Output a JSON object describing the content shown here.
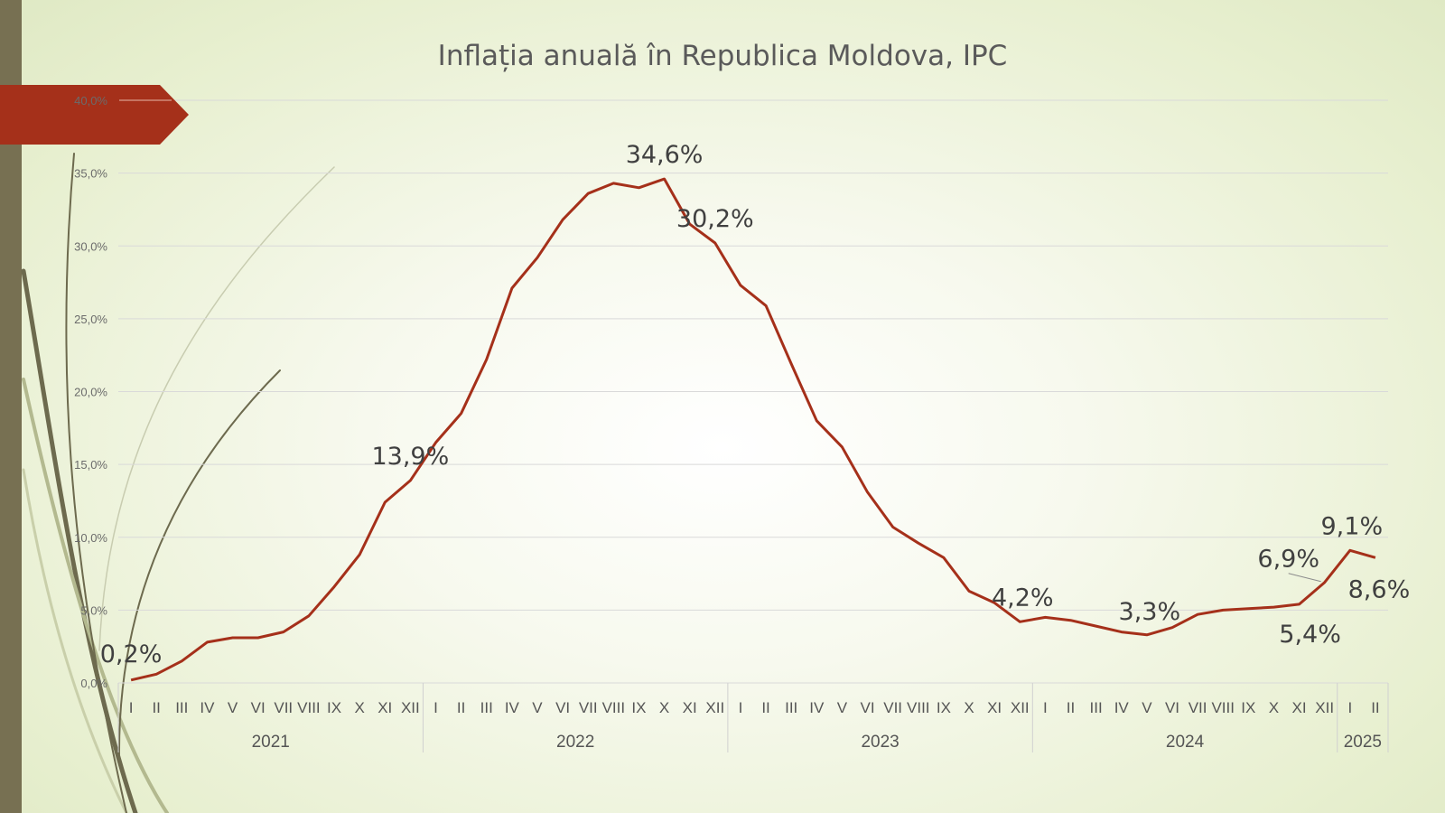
{
  "title": "Inflația anuală în Republica Moldova, IPC",
  "colors": {
    "line": "#a5301a",
    "arrow": "#a5301a",
    "sidebar": "#777052",
    "grid": "#d9d9d9"
  },
  "chart_data": {
    "type": "line",
    "title": "Inflația anuală în Republica Moldova, IPC",
    "ylim": [
      0,
      40
    ],
    "y_ticks": [
      "0,0%",
      "5,0%",
      "10,0%",
      "15,0%",
      "20,0%",
      "25,0%",
      "30,0%",
      "35,0%",
      "40,0%"
    ],
    "grid": true,
    "legend": "none",
    "years": [
      {
        "label": "2021",
        "months": 12
      },
      {
        "label": "2022",
        "months": 12
      },
      {
        "label": "2023",
        "months": 12
      },
      {
        "label": "2024",
        "months": 12
      },
      {
        "label": "2025",
        "months": 2
      }
    ],
    "months": [
      "I",
      "II",
      "III",
      "IV",
      "V",
      "VI",
      "VII",
      "VIII",
      "IX",
      "X",
      "XI",
      "XII",
      "I",
      "II",
      "III",
      "IV",
      "V",
      "VI",
      "VII",
      "VIII",
      "IX",
      "X",
      "XI",
      "XII",
      "I",
      "II",
      "III",
      "IV",
      "V",
      "VI",
      "VII",
      "VIII",
      "IX",
      "X",
      "XI",
      "XII",
      "I",
      "II",
      "III",
      "IV",
      "V",
      "VI",
      "VII",
      "VIII",
      "IX",
      "X",
      "XI",
      "XII",
      "I",
      "II"
    ],
    "series": [
      {
        "values": [
          0.2,
          0.6,
          1.5,
          2.8,
          3.1,
          3.1,
          3.5,
          4.6,
          6.6,
          8.8,
          12.4,
          13.9,
          16.5,
          18.5,
          22.2,
          27.1,
          29.2,
          31.8,
          33.6,
          34.3,
          34.0,
          34.6,
          31.5,
          30.2,
          27.3,
          25.9,
          21.9,
          18.0,
          16.2,
          13.1,
          10.7,
          9.6,
          8.6,
          6.3,
          5.5,
          4.2,
          4.5,
          4.3,
          3.9,
          3.5,
          3.3,
          3.8,
          4.7,
          5.0,
          5.1,
          5.2,
          5.4,
          6.9,
          9.1,
          8.6
        ]
      }
    ],
    "data_labels": [
      {
        "index": 0,
        "text": "0,2%"
      },
      {
        "index": 11,
        "text": "13,9%"
      },
      {
        "index": 21,
        "text": "34,6%"
      },
      {
        "index": 23,
        "text": "30,2%"
      },
      {
        "index": 35,
        "text": "4,2%"
      },
      {
        "index": 40,
        "text": "3,3%"
      },
      {
        "index": 46,
        "text": "5,4%"
      },
      {
        "index": 47,
        "text": "6,9%"
      },
      {
        "index": 48,
        "text": "9,1%"
      },
      {
        "index": 49,
        "text": "8,6%"
      }
    ]
  }
}
